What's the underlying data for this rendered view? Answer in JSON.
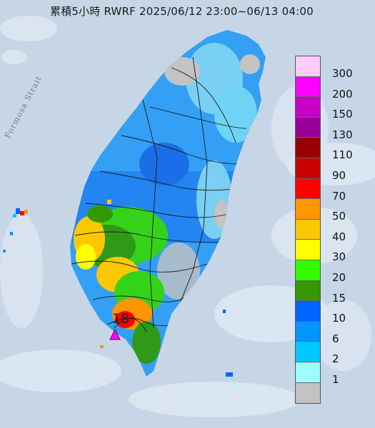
{
  "title": "累積5小時 RWRF 2025/06/12 23:00~06/13 04:00",
  "strait_label": "Formosa Strait",
  "peak_value": "18",
  "legend": [
    {
      "label": "300",
      "color": "#fecbfe"
    },
    {
      "label": "200",
      "color": "#fe00fe"
    },
    {
      "label": "150",
      "color": "#c800c8"
    },
    {
      "label": "130",
      "color": "#9a009a"
    },
    {
      "label": "110",
      "color": "#990000"
    },
    {
      "label": "90",
      "color": "#c80000"
    },
    {
      "label": "70",
      "color": "#fe0000"
    },
    {
      "label": "50",
      "color": "#fe9600"
    },
    {
      "label": "40",
      "color": "#fec800"
    },
    {
      "label": "30",
      "color": "#fefe00"
    },
    {
      "label": "20",
      "color": "#33fe00"
    },
    {
      "label": "15",
      "color": "#339900"
    },
    {
      "label": "10",
      "color": "#0064fe"
    },
    {
      "label": "6",
      "color": "#0096fe"
    },
    {
      "label": "2",
      "color": "#00c8fe"
    },
    {
      "label": "1",
      "color": "#9efefe"
    },
    {
      "label": "",
      "color": "#c3c3c3"
    }
  ]
}
